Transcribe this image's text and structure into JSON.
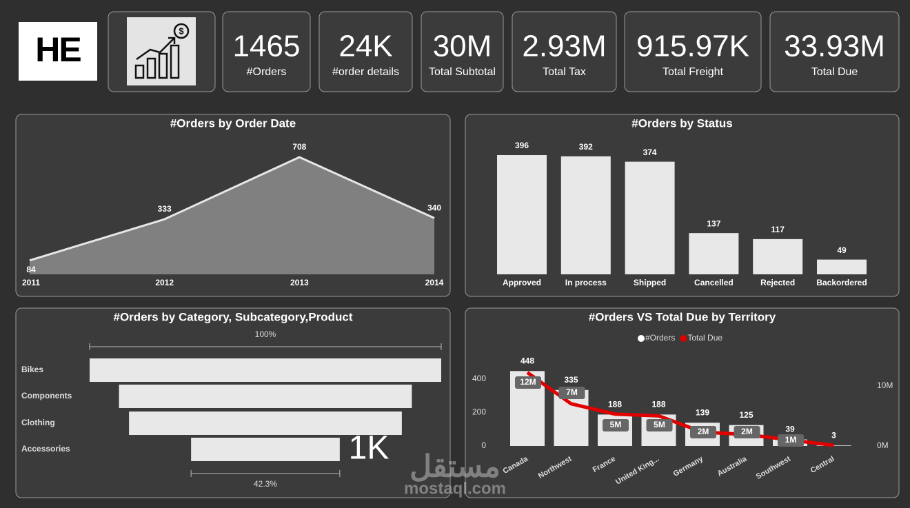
{
  "logo": "HE",
  "kpis": [
    {
      "value": "1465",
      "label": "#Orders"
    },
    {
      "value": "24K",
      "label": "#order details"
    },
    {
      "value": "30M",
      "label": "Total Subtotal"
    },
    {
      "value": "2.93M",
      "label": "Total Tax"
    },
    {
      "value": "915.97K",
      "label": "Total Freight"
    },
    {
      "value": "33.93M",
      "label": "Total Due"
    }
  ],
  "watermark": {
    "arabic": "مستقل",
    "latin": "mostaql.com"
  },
  "chart_data": [
    {
      "type": "area",
      "title": "#Orders by Order Date",
      "categories": [
        "2011",
        "2012",
        "2013",
        "2014"
      ],
      "values": [
        84,
        333,
        708,
        340
      ],
      "color": "#808080",
      "line_color": "#e6e6e6"
    },
    {
      "type": "bar",
      "title": "#Orders by Status",
      "categories": [
        "Approved",
        "In process",
        "Shipped",
        "Cancelled",
        "Rejected",
        "Backordered"
      ],
      "values": [
        396,
        392,
        374,
        137,
        117,
        49
      ],
      "color": "#e8e8e8"
    },
    {
      "type": "funnel",
      "title": "#Orders by Category, Subcategory,Product",
      "categories": [
        "Bikes",
        "Components",
        "Clothing",
        "Accessories"
      ],
      "values": [
        100,
        83.3,
        77.6,
        42.3
      ],
      "value_labels": [
        "100%",
        null,
        null,
        "42.3%"
      ],
      "annotation": "1K",
      "color": "#e8e8e8"
    },
    {
      "type": "combo",
      "title": "#Orders VS Total Due by Territory",
      "categories": [
        "Canada",
        "Northwest",
        "France",
        "United King...",
        "Germany",
        "Australia",
        "Southwest",
        "Central"
      ],
      "series": [
        {
          "name": "#Orders",
          "color": "#e8e8e8",
          "values": [
            448,
            335,
            188,
            188,
            139,
            125,
            39,
            3
          ]
        },
        {
          "name": "Total Due",
          "color": "#e00000",
          "axis": "y2",
          "values": [
            12200000,
            7000000,
            5300000,
            5000000,
            2300000,
            1900000,
            1000000,
            100000
          ],
          "value_labels": [
            "12M",
            "7M",
            "5M",
            "5M",
            "2M",
            "2M",
            "1M",
            null
          ]
        }
      ],
      "ylim": [
        0,
        540
      ],
      "yticks": [
        0,
        200,
        400
      ],
      "y2lim": [
        0,
        15000000
      ],
      "y2ticks": [
        {
          "value": 0,
          "label": "0M"
        },
        {
          "value": 10000000,
          "label": "10M"
        }
      ],
      "legend": "top"
    }
  ]
}
